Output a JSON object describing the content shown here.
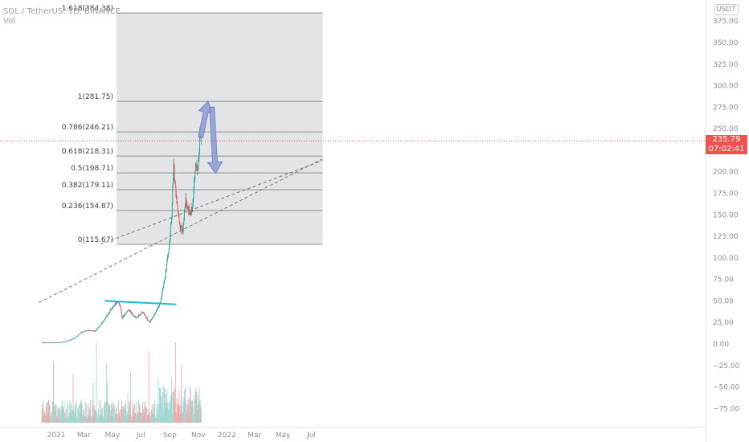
{
  "header": {
    "title": "SOL / TetherUS, 1D, BINANCE",
    "volume_label": "Vol"
  },
  "price_axis": {
    "currency_button": "USDT"
  },
  "last_price": {
    "value": "235.79",
    "countdown": "07:02:41"
  },
  "colors": {
    "up": "#26a69a",
    "down": "#ef5350",
    "fib_fill": "#e3e4e6",
    "fib_line": "#8d8f93",
    "support_line": "#1ab7d9",
    "arrow": "#8f9fd6",
    "axis_text": "#8a8f98",
    "trend": "#777a80"
  },
  "chart_data": {
    "type": "candlestick",
    "symbol": "SOL / TetherUS",
    "interval": "1D",
    "exchange": "BINANCE",
    "y_ticks": [
      375,
      350,
      325,
      300,
      275,
      250,
      225,
      200,
      175,
      150,
      125,
      100,
      75,
      50,
      25,
      0,
      -25,
      -50,
      -75
    ],
    "y_tick_labels": [
      "375.00",
      "350.00",
      "325.00",
      "300.00",
      "275.00",
      "250.00",
      "225.00",
      "200.00",
      "175.00",
      "150.00",
      "125.00",
      "100.00",
      "75.00",
      "50.00",
      "25.00",
      "0.00",
      "−25.00",
      "−50.00",
      "−75.00"
    ],
    "x_ticks": [
      {
        "label": "2021",
        "date": "2021-01-01"
      },
      {
        "label": "Mar",
        "date": "2021-03-01"
      },
      {
        "label": "May",
        "date": "2021-05-01"
      },
      {
        "label": "Jul",
        "date": "2021-07-01"
      },
      {
        "label": "Sep",
        "date": "2021-09-01"
      },
      {
        "label": "Nov",
        "date": "2021-11-01"
      },
      {
        "label": "2022",
        "date": "2022-01-01"
      },
      {
        "label": "Mar",
        "date": "2022-03-01"
      },
      {
        "label": "May",
        "date": "2022-05-01"
      },
      {
        "label": "Jul",
        "date": "2022-07-01"
      }
    ],
    "fib_levels": [
      {
        "label": "1.618(384.38)",
        "ratio": 1.618,
        "price": 384.38
      },
      {
        "label": "1(281.75)",
        "ratio": 1,
        "price": 281.75
      },
      {
        "label": "0.786(246.21)",
        "ratio": 0.786,
        "price": 246.21
      },
      {
        "label": "0.618(218.31)",
        "ratio": 0.618,
        "price": 218.31
      },
      {
        "label": "0.5(198.71)",
        "ratio": 0.5,
        "price": 198.71
      },
      {
        "label": "0.382(179.11)",
        "ratio": 0.382,
        "price": 179.11
      },
      {
        "label": "0.236(154.87)",
        "ratio": 0.236,
        "price": 154.87
      },
      {
        "label": "0(115.67)",
        "ratio": 0,
        "price": 115.67
      }
    ],
    "fib_range": {
      "start": "2021-05-10",
      "end": "2022-07-25"
    },
    "last_price": 235.79,
    "price_path": [
      [
        "2020-12-01",
        2.0
      ],
      [
        "2020-12-20",
        1.6
      ],
      [
        "2021-01-10",
        2.0
      ],
      [
        "2021-01-25",
        3.5
      ],
      [
        "2021-02-10",
        7
      ],
      [
        "2021-02-25",
        14
      ],
      [
        "2021-03-10",
        16
      ],
      [
        "2021-03-25",
        15
      ],
      [
        "2021-04-10",
        25
      ],
      [
        "2021-04-25",
        38
      ],
      [
        "2021-05-05",
        45
      ],
      [
        "2021-05-12",
        50
      ],
      [
        "2021-05-18",
        44
      ],
      [
        "2021-05-22",
        30
      ],
      [
        "2021-06-05",
        40
      ],
      [
        "2021-06-20",
        30
      ],
      [
        "2021-07-05",
        37
      ],
      [
        "2021-07-20",
        25
      ],
      [
        "2021-08-02",
        37
      ],
      [
        "2021-08-12",
        48
      ],
      [
        "2021-08-22",
        80
      ],
      [
        "2021-08-30",
        110
      ],
      [
        "2021-09-05",
        150
      ],
      [
        "2021-09-09",
        210
      ],
      [
        "2021-09-14",
        175
      ],
      [
        "2021-09-20",
        145
      ],
      [
        "2021-09-28",
        130
      ],
      [
        "2021-10-05",
        168
      ],
      [
        "2021-10-12",
        152
      ],
      [
        "2021-10-19",
        157
      ],
      [
        "2021-10-25",
        205
      ],
      [
        "2021-10-31",
        200
      ],
      [
        "2021-11-05",
        245
      ],
      [
        "2021-11-07",
        235.79
      ]
    ],
    "support_line": [
      [
        "2021-04-15",
        50
      ],
      [
        "2021-09-15",
        46
      ]
    ],
    "trend_lines": [
      [
        [
          "2021-04-05",
          115.67
        ],
        [
          "2022-07-25",
          213
        ]
      ],
      [
        [
          "2020-11-25",
          48
        ],
        [
          "2022-07-25",
          215
        ]
      ]
    ],
    "projection_arrows": [
      [
        [
          "2021-11-06",
          240
        ],
        [
          "2021-11-22",
          282
        ]
      ],
      [
        [
          "2021-11-30",
          275
        ],
        [
          "2021-12-08",
          198
        ]
      ]
    ]
  }
}
